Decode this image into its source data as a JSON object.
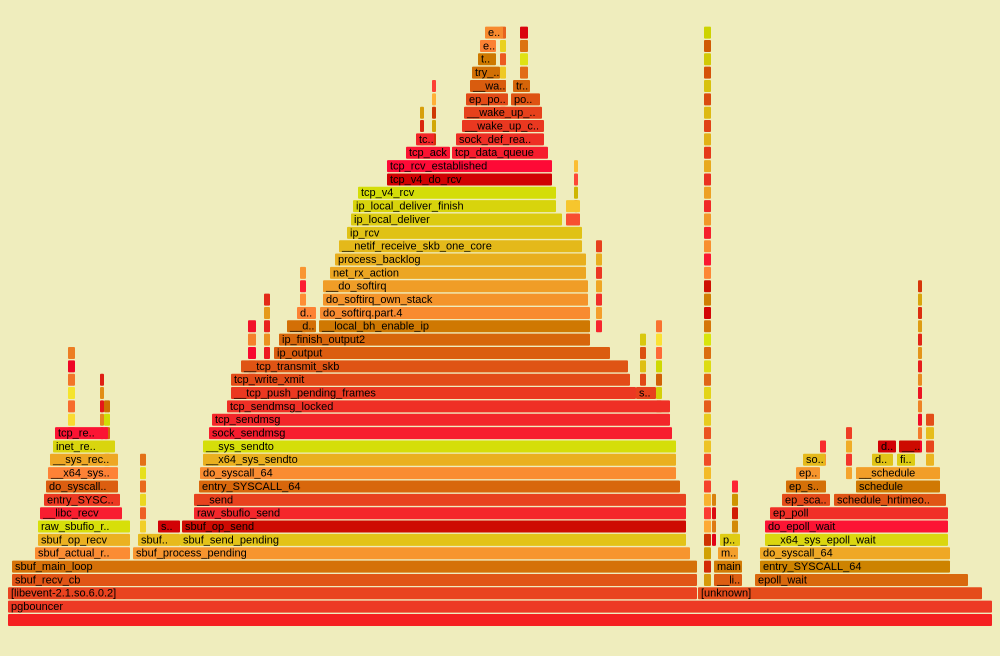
{
  "frames": [
    "",
    "pgbouncer",
    "[libevent-2.1.so.6.0.2]",
    "[unknown]",
    "sbuf_recv_cb",
    "__li..",
    "epoll_wait",
    "sbuf_main_loop",
    "main",
    "entry_SYSCALL_64",
    "sbuf_actual_r..",
    "sbuf_process_pending",
    "m..",
    "do_syscall_64",
    "sbuf_op_recv",
    "sbuf..",
    "sbuf_send_pending",
    "p..",
    "__x64_sys_epoll_wait",
    "raw_sbufio_r..",
    "s..",
    "sbuf_op_send",
    "do_epoll_wait",
    "__libc_recv",
    "raw_sbufio_send",
    "ep_poll",
    "entry_SYSC..",
    "__send",
    "ep_sca..",
    "schedule_hrtimeo..",
    "do_syscall..",
    "entry_SYSCALL_64",
    "ep_s..",
    "schedule",
    "__x64_sys..",
    "do_syscall_64",
    "ep..",
    "__schedule",
    "__sys_rec..",
    "__x64_sys_sendto",
    "so..",
    "d..",
    "fi..",
    "inet_re..",
    "__sys_sendto",
    "d..",
    "__..",
    "tcp_re..",
    "sock_sendmsg",
    "tcp_sendmsg",
    "tcp_sendmsg_locked",
    "__tcp_push_pending_frames",
    "s..",
    "tcp_write_xmit",
    "__tcp_transmit_skb",
    "ip_output",
    "ip_finish_output2",
    "__d..",
    "__local_bh_enable_ip",
    "d..",
    "do_softirq.part.4",
    "do_softirq_own_stack",
    "__do_softirq",
    "net_rx_action",
    "process_backlog",
    "__netif_receive_skb_one_core",
    "ip_rcv",
    "ip_local_deliver",
    "ip_local_deliver_finish",
    "tcp_v4_rcv",
    "tcp_v4_do_rcv",
    "tcp_rcv_established",
    "tcp_ack",
    "tcp_data_queue",
    "tc..",
    "sock_def_rea..",
    "__wake_up_c..",
    "__wake_up_..",
    "ep_po..",
    "po..",
    "__wa..",
    "tr..",
    "try_..",
    "t..",
    "e..",
    "e.."
  ]
}
